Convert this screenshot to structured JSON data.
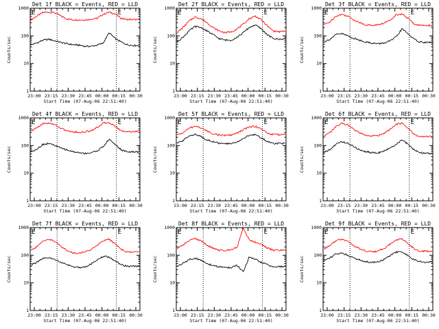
{
  "colors": {
    "events": "#000000",
    "lld": "#ff0000",
    "frame": "#000000",
    "background": "#ffffff"
  },
  "chart_data": [
    {
      "type": "line",
      "title": "Det 1f BLACK = Events, RED = LLD",
      "xlabel": "Start Time (07-Aug-06 22:51:40)",
      "ylabel": "Counts/sec",
      "yscale": "log",
      "ylim": [
        1,
        1000
      ],
      "x_ticks": [
        "23:00",
        "23:15",
        "23:30",
        "23:45",
        "00:00",
        "00:15",
        "00:30"
      ],
      "y_ticks": [
        "1",
        "10",
        "100",
        "1000"
      ],
      "markers": [
        "E",
        "E"
      ],
      "series": [
        {
          "name": "LLD",
          "color": "#ff0000",
          "values": [
            380,
            520,
            700,
            720,
            690,
            520,
            410,
            380,
            380,
            380,
            400,
            430,
            600,
            720,
            620,
            430,
            390,
            390,
            380
          ]
        },
        {
          "name": "Events",
          "color": "#000000",
          "values": [
            48,
            55,
            70,
            75,
            66,
            58,
            52,
            48,
            46,
            42,
            42,
            46,
            55,
            130,
            80,
            60,
            48,
            45,
            45
          ]
        }
      ]
    },
    {
      "type": "line",
      "title": "Det 2f BLACK = Events, RED = LLD",
      "xlabel": "Start Time (07-Aug-06 22:51:40)",
      "ylabel": "Counts/sec",
      "yscale": "log",
      "ylim": [
        1,
        1000
      ],
      "x_ticks": [
        "23:00",
        "23:15",
        "23:30",
        "23:45",
        "00:00",
        "00:15",
        "00:30"
      ],
      "y_ticks": [
        "1",
        "10",
        "100",
        "1000"
      ],
      "markers": [
        "E",
        "E"
      ],
      "series": [
        {
          "name": "LLD",
          "color": "#ff0000",
          "values": [
            130,
            200,
            340,
            480,
            420,
            300,
            200,
            150,
            130,
            140,
            180,
            260,
            420,
            520,
            380,
            230,
            150,
            140,
            150
          ]
        },
        {
          "name": "Events",
          "color": "#000000",
          "values": [
            60,
            90,
            150,
            220,
            200,
            150,
            110,
            80,
            70,
            70,
            90,
            130,
            200,
            250,
            180,
            110,
            80,
            75,
            80
          ]
        }
      ]
    },
    {
      "type": "line",
      "title": "Det 3f BLACK = Events, RED = LLD",
      "xlabel": "Start Time (07-Aug-06 22:51:40)",
      "ylabel": "Counts/sec",
      "yscale": "log",
      "ylim": [
        1,
        1000
      ],
      "x_ticks": [
        "23:00",
        "23:15",
        "23:30",
        "23:45",
        "00:00",
        "00:15",
        "00:30"
      ],
      "y_ticks": [
        "1",
        "10",
        "100",
        "1000"
      ],
      "markers": [
        "E",
        "E"
      ],
      "series": [
        {
          "name": "LLD",
          "color": "#ff0000",
          "values": [
            250,
            320,
            520,
            600,
            520,
            380,
            300,
            250,
            240,
            250,
            290,
            370,
            580,
            620,
            430,
            270,
            240,
            240,
            240
          ]
        },
        {
          "name": "Events",
          "color": "#000000",
          "values": [
            60,
            75,
            110,
            120,
            100,
            80,
            70,
            60,
            55,
            52,
            55,
            65,
            90,
            180,
            120,
            75,
            60,
            58,
            58
          ]
        }
      ]
    },
    {
      "type": "line",
      "title": "Det 4f BLACK = Events, RED = LLD",
      "xlabel": "Start Time (07-Aug-06 22:51:40)",
      "ylabel": "Counts/sec",
      "yscale": "log",
      "ylim": [
        1,
        1000
      ],
      "x_ticks": [
        "23:00",
        "23:15",
        "23:30",
        "23:45",
        "00:00",
        "00:15",
        "00:30"
      ],
      "y_ticks": [
        "1",
        "10",
        "100",
        "1000"
      ],
      "markers": [
        "E",
        "E"
      ],
      "series": [
        {
          "name": "LLD",
          "color": "#ff0000",
          "values": [
            330,
            440,
            620,
            650,
            560,
            420,
            340,
            310,
            300,
            310,
            350,
            450,
            640,
            680,
            500,
            340,
            320,
            320,
            330
          ]
        },
        {
          "name": "Events",
          "color": "#000000",
          "values": [
            60,
            75,
            110,
            120,
            100,
            80,
            70,
            60,
            55,
            52,
            55,
            65,
            90,
            170,
            110,
            70,
            60,
            58,
            58
          ]
        }
      ]
    },
    {
      "type": "line",
      "title": "Det 5f BLACK = Events, RED = LLD",
      "xlabel": "Start Time (07-Aug-06 22:51:40)",
      "ylabel": "Counts/sec",
      "yscale": "log",
      "ylim": [
        1,
        1000
      ],
      "x_ticks": [
        "23:00",
        "23:15",
        "23:30",
        "23:45",
        "00:00",
        "00:15",
        "00:30"
      ],
      "y_ticks": [
        "1",
        "10",
        "100",
        "1000"
      ],
      "markers": [
        "E",
        "E"
      ],
      "series": [
        {
          "name": "LLD",
          "color": "#ff0000",
          "values": [
            240,
            290,
            420,
            500,
            440,
            330,
            270,
            240,
            230,
            240,
            280,
            370,
            470,
            500,
            400,
            280,
            250,
            250,
            260
          ]
        },
        {
          "name": "Events",
          "color": "#000000",
          "values": [
            120,
            150,
            230,
            250,
            210,
            160,
            140,
            120,
            115,
            118,
            135,
            180,
            230,
            250,
            190,
            140,
            120,
            120,
            120
          ]
        }
      ]
    },
    {
      "type": "line",
      "title": "Det 6f BLACK = Events, RED = LLD",
      "xlabel": "Start Time (07-Aug-06 22:51:40)",
      "ylabel": "Counts/sec",
      "yscale": "log",
      "ylim": [
        1,
        1000
      ],
      "x_ticks": [
        "23:00",
        "23:15",
        "23:30",
        "23:45",
        "00:00",
        "00:15",
        "00:30"
      ],
      "y_ticks": [
        "1",
        "10",
        "100",
        "1000"
      ],
      "markers": [
        "E",
        "E"
      ],
      "series": [
        {
          "name": "LLD",
          "color": "#ff0000",
          "values": [
            220,
            290,
            480,
            640,
            560,
            380,
            280,
            230,
            220,
            230,
            280,
            380,
            580,
            640,
            420,
            250,
            210,
            210,
            210
          ]
        },
        {
          "name": "Events",
          "color": "#000000",
          "values": [
            55,
            70,
            110,
            140,
            120,
            90,
            70,
            60,
            55,
            55,
            62,
            80,
            110,
            160,
            110,
            70,
            55,
            52,
            52
          ]
        }
      ]
    },
    {
      "type": "line",
      "title": "Det 7f BLACK = Events, RED = LLD",
      "xlabel": "Start Time (07-Aug-06 22:51:40)",
      "ylabel": "Counts/sec",
      "yscale": "log",
      "ylim": [
        1,
        1000
      ],
      "x_ticks": [
        "23:00",
        "23:15",
        "23:30",
        "23:45",
        "00:00",
        "00:15",
        "00:30"
      ],
      "y_ticks": [
        "1",
        "10",
        "100",
        "1000"
      ],
      "markers": [
        "E",
        "E"
      ],
      "series": [
        {
          "name": "LLD",
          "color": "#ff0000",
          "values": [
            150,
            200,
            330,
            380,
            310,
            210,
            150,
            120,
            120,
            130,
            160,
            230,
            340,
            380,
            260,
            160,
            130,
            130,
            130
          ]
        },
        {
          "name": "Events",
          "color": "#000000",
          "values": [
            45,
            55,
            75,
            80,
            70,
            55,
            45,
            38,
            36,
            38,
            48,
            65,
            90,
            85,
            62,
            45,
            40,
            40,
            40
          ]
        }
      ]
    },
    {
      "type": "line",
      "title": "Det 8f BLACK = Events, RED = LLD",
      "xlabel": "Start Time (07-Aug-06 22:51:40)",
      "ylabel": "Counts/sec",
      "yscale": "log",
      "ylim": [
        1,
        1000
      ],
      "x_ticks": [
        "23:00",
        "23:15",
        "23:30",
        "23:45",
        "00:00",
        "00:15",
        "00:30"
      ],
      "y_ticks": [
        "1",
        "10",
        "100",
        "1000"
      ],
      "markers": [
        "E",
        "E"
      ],
      "series": [
        {
          "name": "LLD",
          "color": "#ff0000",
          "values": [
            180,
            230,
            340,
            400,
            330,
            230,
            180,
            150,
            150,
            160,
            200,
            1000,
            350,
            300,
            250,
            180,
            150,
            150,
            150
          ]
        },
        {
          "name": "Events",
          "color": "#000000",
          "values": [
            40,
            50,
            70,
            78,
            65,
            50,
            42,
            38,
            36,
            36,
            42,
            25,
            85,
            70,
            55,
            45,
            38,
            38,
            40
          ]
        }
      ]
    },
    {
      "type": "line",
      "title": "Det 9f BLACK = Events, RED = LLD",
      "xlabel": "Start Time (07-Aug-06 22:51:40)",
      "ylabel": "Counts/sec",
      "yscale": "log",
      "ylim": [
        1,
        1000
      ],
      "x_ticks": [
        "23:00",
        "23:15",
        "23:30",
        "23:45",
        "00:00",
        "00:15",
        "00:30"
      ],
      "y_ticks": [
        "1",
        "10",
        "100",
        "1000"
      ],
      "markers": [
        "E",
        "E"
      ],
      "series": [
        {
          "name": "LLD",
          "color": "#ff0000",
          "values": [
            170,
            220,
            330,
            380,
            320,
            220,
            170,
            140,
            135,
            140,
            175,
            250,
            360,
            380,
            270,
            170,
            140,
            140,
            140
          ]
        },
        {
          "name": "Events",
          "color": "#000000",
          "values": [
            65,
            80,
            110,
            120,
            100,
            80,
            68,
            58,
            55,
            58,
            70,
            95,
            130,
            130,
            95,
            68,
            58,
            56,
            56
          ]
        }
      ]
    }
  ]
}
